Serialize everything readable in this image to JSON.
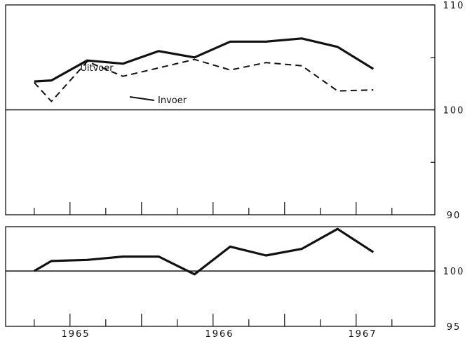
{
  "colors": {
    "ink": "#111111",
    "background": "#ffffff"
  },
  "x_tick_labels": [
    "1965",
    "1966",
    "1967"
  ],
  "chart_data": [
    {
      "type": "line",
      "title": "",
      "xlabel": "",
      "ylabel": "",
      "y_axis_side": "right",
      "ylim": [
        90,
        110
      ],
      "yticks": [
        90,
        100,
        110
      ],
      "xlim": [
        1964.55,
        1967.55
      ],
      "x_minor_ticks": [
        1964.75,
        1965.0,
        1965.25,
        1965.5,
        1965.75,
        1966.0,
        1966.25,
        1966.5,
        1966.75,
        1967.0,
        1967.25
      ],
      "reference_line": 100,
      "grid": false,
      "series": [
        {
          "name": "Uitvoer",
          "style": "solid",
          "x": [
            1964.75,
            1964.87,
            1965.12,
            1965.37,
            1965.62,
            1965.87,
            1966.12,
            1966.37,
            1966.62,
            1966.87,
            1967.12
          ],
          "y": [
            102.7,
            102.8,
            104.7,
            104.4,
            105.6,
            105.0,
            106.5,
            106.5,
            106.8,
            106.0,
            103.9
          ]
        },
        {
          "name": "Invoer",
          "style": "dashed",
          "x": [
            1964.75,
            1964.87,
            1965.12,
            1965.37,
            1965.62,
            1965.87,
            1966.12,
            1966.37,
            1966.62,
            1966.87,
            1967.12
          ],
          "y": [
            102.6,
            100.8,
            104.6,
            103.2,
            104.0,
            104.8,
            103.8,
            104.5,
            104.2,
            101.8,
            101.9
          ]
        }
      ],
      "annotations": [
        {
          "text": "Uitvoer",
          "series": "Uitvoer"
        },
        {
          "text": "Invoer",
          "series": "Invoer"
        }
      ]
    },
    {
      "type": "line",
      "title": "",
      "xlabel": "",
      "ylabel": "",
      "y_axis_side": "right",
      "ylim": [
        95,
        104
      ],
      "yticks": [
        95,
        100
      ],
      "xlim": [
        1964.55,
        1967.55
      ],
      "x_minor_ticks": [
        1964.75,
        1965.0,
        1965.25,
        1965.5,
        1965.75,
        1966.0,
        1966.25,
        1966.5,
        1966.75,
        1967.0,
        1967.25
      ],
      "reference_line": 100,
      "grid": false,
      "series": [
        {
          "style": "solid",
          "x": [
            1964.75,
            1964.87,
            1965.12,
            1965.37,
            1965.62,
            1965.87,
            1966.12,
            1966.37,
            1966.62,
            1966.87,
            1967.12
          ],
          "y": [
            100.0,
            100.9,
            101.0,
            101.3,
            101.3,
            99.7,
            102.2,
            101.4,
            102.0,
            103.8,
            101.7
          ]
        }
      ]
    }
  ]
}
